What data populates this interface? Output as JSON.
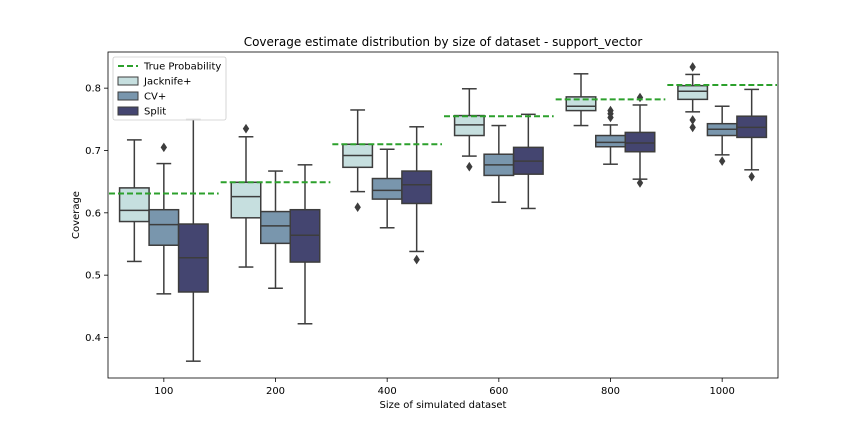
{
  "chart_data": {
    "type": "box",
    "title": "Coverage estimate distribution by size of dataset - support_vector",
    "xlabel": "Size of simulated dataset",
    "ylabel": "Coverage",
    "categories": [
      "100",
      "200",
      "400",
      "600",
      "800",
      "1000"
    ],
    "ylim": [
      0.335,
      0.858
    ],
    "yticks": [
      0.4,
      0.5,
      0.6,
      0.7,
      0.8
    ],
    "ytick_labels": [
      "0.4",
      "0.5",
      "0.6",
      "0.7",
      "0.8"
    ],
    "legend": {
      "placement": "top-left",
      "entries": [
        "True Probability",
        "Jacknife+",
        "CV+",
        "Split"
      ]
    },
    "true_probability": {
      "name": "True Probability",
      "color": "#2ca02c",
      "values": [
        0.631,
        0.649,
        0.71,
        0.755,
        0.782,
        0.805
      ]
    },
    "series": [
      {
        "name": "Jacknife+",
        "color": "#c6dfdf",
        "boxes": [
          {
            "whislo": 0.522,
            "q1": 0.586,
            "med": 0.604,
            "q3": 0.64,
            "whishi": 0.717,
            "fliers": []
          },
          {
            "whislo": 0.513,
            "q1": 0.592,
            "med": 0.626,
            "q3": 0.649,
            "whishi": 0.722,
            "fliers": [
              0.735
            ]
          },
          {
            "whislo": 0.634,
            "q1": 0.673,
            "med": 0.692,
            "q3": 0.71,
            "whishi": 0.765,
            "fliers": [
              0.609
            ]
          },
          {
            "whislo": 0.691,
            "q1": 0.724,
            "med": 0.741,
            "q3": 0.756,
            "whishi": 0.799,
            "fliers": [
              0.674
            ]
          },
          {
            "whislo": 0.74,
            "q1": 0.764,
            "med": 0.771,
            "q3": 0.786,
            "whishi": 0.823,
            "fliers": []
          },
          {
            "whislo": 0.762,
            "q1": 0.782,
            "med": 0.795,
            "q3": 0.804,
            "whishi": 0.822,
            "fliers": [
              0.834,
              0.749,
              0.737
            ]
          }
        ]
      },
      {
        "name": "CV+",
        "color": "#7996ad",
        "boxes": [
          {
            "whislo": 0.47,
            "q1": 0.548,
            "med": 0.581,
            "q3": 0.605,
            "whishi": 0.679,
            "fliers": [
              0.705
            ]
          },
          {
            "whislo": 0.479,
            "q1": 0.551,
            "med": 0.579,
            "q3": 0.602,
            "whishi": 0.667,
            "fliers": []
          },
          {
            "whislo": 0.576,
            "q1": 0.622,
            "med": 0.636,
            "q3": 0.655,
            "whishi": 0.702,
            "fliers": []
          },
          {
            "whislo": 0.617,
            "q1": 0.66,
            "med": 0.677,
            "q3": 0.694,
            "whishi": 0.74,
            "fliers": []
          },
          {
            "whislo": 0.678,
            "q1": 0.706,
            "med": 0.713,
            "q3": 0.724,
            "whishi": 0.741,
            "fliers": [
              0.764,
              0.759,
              0.753
            ]
          },
          {
            "whislo": 0.693,
            "q1": 0.724,
            "med": 0.734,
            "q3": 0.743,
            "whishi": 0.771,
            "fliers": [
              0.683
            ]
          }
        ]
      },
      {
        "name": "Split",
        "color": "#444570",
        "boxes": [
          {
            "whislo": 0.362,
            "q1": 0.473,
            "med": 0.528,
            "q3": 0.582,
            "whishi": 0.75,
            "fliers": []
          },
          {
            "whislo": 0.422,
            "q1": 0.521,
            "med": 0.564,
            "q3": 0.605,
            "whishi": 0.677,
            "fliers": []
          },
          {
            "whislo": 0.538,
            "q1": 0.615,
            "med": 0.645,
            "q3": 0.667,
            "whishi": 0.738,
            "fliers": [
              0.525
            ]
          },
          {
            "whislo": 0.607,
            "q1": 0.662,
            "med": 0.683,
            "q3": 0.705,
            "whishi": 0.758,
            "fliers": []
          },
          {
            "whislo": 0.654,
            "q1": 0.698,
            "med": 0.712,
            "q3": 0.729,
            "whishi": 0.773,
            "fliers": [
              0.785,
              0.648
            ]
          },
          {
            "whislo": 0.669,
            "q1": 0.721,
            "med": 0.737,
            "q3": 0.755,
            "whishi": 0.798,
            "fliers": [
              0.658
            ]
          }
        ]
      }
    ]
  }
}
